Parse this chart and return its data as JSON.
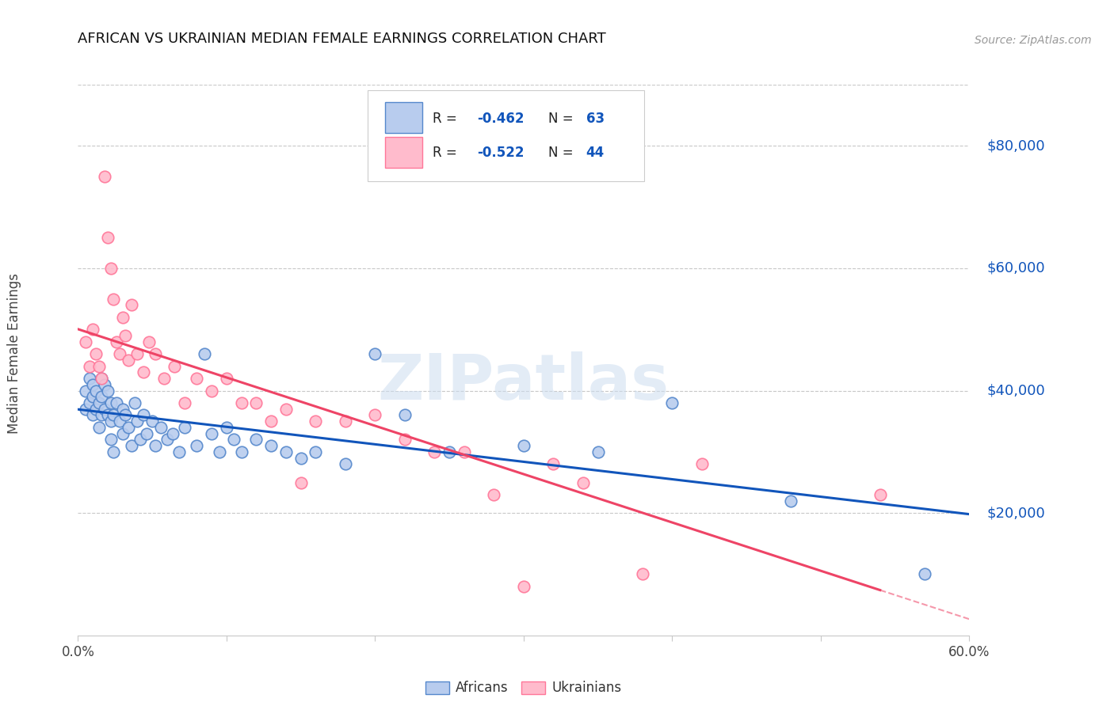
{
  "title": "AFRICAN VS UKRAINIAN MEDIAN FEMALE EARNINGS CORRELATION CHART",
  "source": "Source: ZipAtlas.com",
  "ylabel": "Median Female Earnings",
  "watermark": "ZIPatlas",
  "xlim": [
    0.0,
    0.6
  ],
  "ylim": [
    0,
    90000
  ],
  "yticks": [
    0,
    20000,
    40000,
    60000,
    80000
  ],
  "ytick_labels": [
    "",
    "$20,000",
    "$40,000",
    "$60,000",
    "$80,000"
  ],
  "background_color": "#ffffff",
  "grid_color": "#c8c8c8",
  "africans_dot_fill": "#b8ccee",
  "africans_dot_edge": "#5588cc",
  "ukrainians_dot_fill": "#ffbbcc",
  "ukrainians_dot_edge": "#ff7799",
  "trend_african_color": "#1155bb",
  "trend_ukrainian_color": "#ee4466",
  "R_african": -0.462,
  "N_african": 63,
  "R_ukrainian": -0.522,
  "N_ukrainian": 44,
  "africans_x": [
    0.005,
    0.005,
    0.008,
    0.008,
    0.01,
    0.01,
    0.01,
    0.012,
    0.012,
    0.014,
    0.014,
    0.016,
    0.016,
    0.016,
    0.018,
    0.018,
    0.02,
    0.02,
    0.022,
    0.022,
    0.022,
    0.024,
    0.024,
    0.026,
    0.028,
    0.03,
    0.03,
    0.032,
    0.034,
    0.036,
    0.038,
    0.04,
    0.042,
    0.044,
    0.046,
    0.05,
    0.052,
    0.056,
    0.06,
    0.064,
    0.068,
    0.072,
    0.08,
    0.085,
    0.09,
    0.095,
    0.1,
    0.105,
    0.11,
    0.12,
    0.13,
    0.14,
    0.15,
    0.16,
    0.18,
    0.2,
    0.22,
    0.25,
    0.3,
    0.35,
    0.4,
    0.48,
    0.57
  ],
  "africans_y": [
    40000,
    37000,
    42000,
    38000,
    41000,
    39000,
    36000,
    40000,
    37000,
    38000,
    34000,
    42000,
    39000,
    36000,
    41000,
    37000,
    40000,
    36000,
    38000,
    35000,
    32000,
    36000,
    30000,
    38000,
    35000,
    37000,
    33000,
    36000,
    34000,
    31000,
    38000,
    35000,
    32000,
    36000,
    33000,
    35000,
    31000,
    34000,
    32000,
    33000,
    30000,
    34000,
    31000,
    46000,
    33000,
    30000,
    34000,
    32000,
    30000,
    32000,
    31000,
    30000,
    29000,
    30000,
    28000,
    46000,
    36000,
    30000,
    31000,
    30000,
    38000,
    22000,
    10000
  ],
  "ukrainians_x": [
    0.005,
    0.008,
    0.01,
    0.012,
    0.014,
    0.016,
    0.018,
    0.02,
    0.022,
    0.024,
    0.026,
    0.028,
    0.03,
    0.032,
    0.034,
    0.036,
    0.04,
    0.044,
    0.048,
    0.052,
    0.058,
    0.065,
    0.072,
    0.08,
    0.09,
    0.1,
    0.11,
    0.12,
    0.13,
    0.14,
    0.15,
    0.16,
    0.18,
    0.2,
    0.22,
    0.24,
    0.26,
    0.28,
    0.3,
    0.32,
    0.34,
    0.38,
    0.42,
    0.54
  ],
  "ukrainians_y": [
    48000,
    44000,
    50000,
    46000,
    44000,
    42000,
    75000,
    65000,
    60000,
    55000,
    48000,
    46000,
    52000,
    49000,
    45000,
    54000,
    46000,
    43000,
    48000,
    46000,
    42000,
    44000,
    38000,
    42000,
    40000,
    42000,
    38000,
    38000,
    35000,
    37000,
    25000,
    35000,
    35000,
    36000,
    32000,
    30000,
    30000,
    23000,
    8000,
    28000,
    25000,
    10000,
    28000,
    23000
  ]
}
